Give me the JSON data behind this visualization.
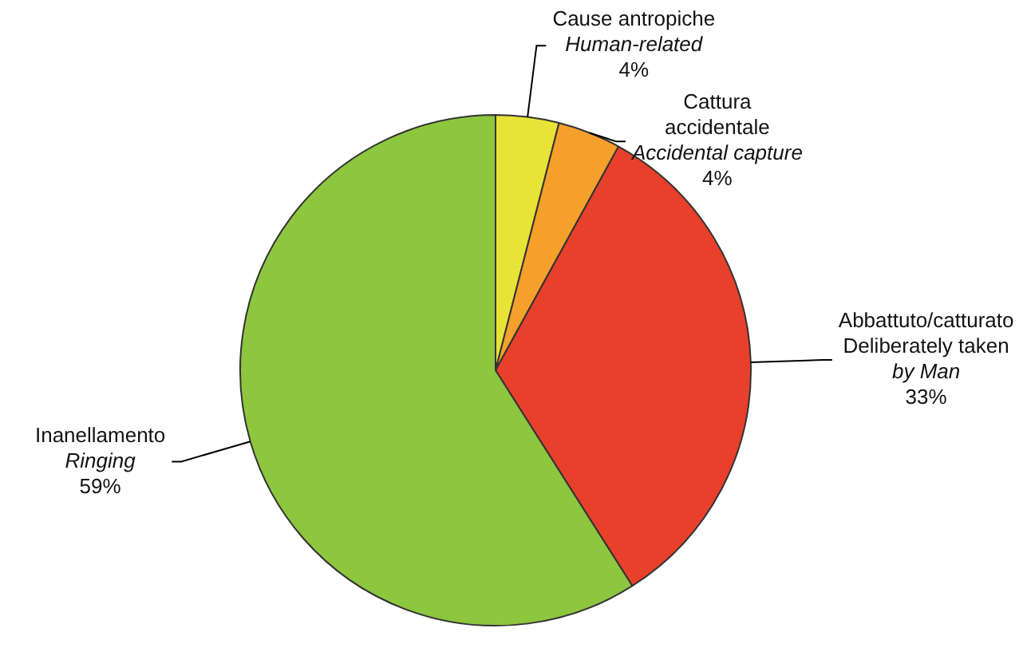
{
  "chart_data": {
    "type": "pie",
    "categories": [
      "Cause antropiche\nHuman-related",
      "Cattura\naccidentale\nAccidental capture",
      "Abbattuto/catturato\nDeliberately taken\nby Man",
      "Inanellamento\nRinging"
    ],
    "values": [
      4,
      4,
      33,
      59
    ],
    "colors": [
      "#e8e337",
      "#f5a02a",
      "#e8402a",
      "#8dc63f"
    ],
    "value_labels": [
      "4%",
      "4%",
      "33%",
      "59%"
    ],
    "legend": false
  }
}
